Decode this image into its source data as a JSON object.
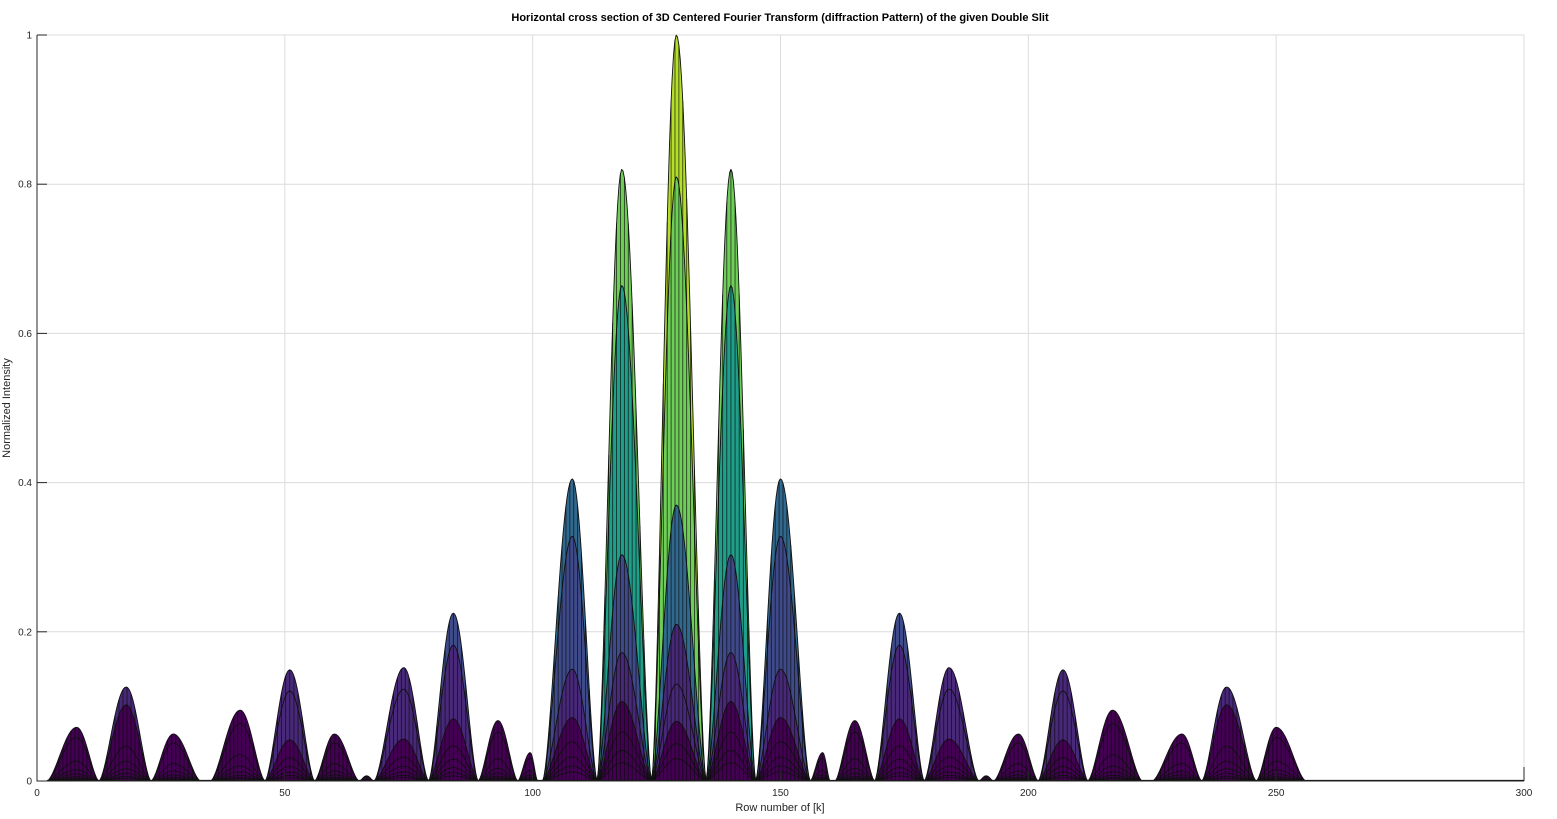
{
  "chart_data": {
    "type": "area",
    "title": "Horizontal cross section of 3D Centered Fourier Transform (diffraction Pattern) of the given Double Slit",
    "xlabel": "Row number of [k]",
    "ylabel": "Normalized Intensity",
    "xlim": [
      0,
      300
    ],
    "ylim": [
      0,
      1
    ],
    "xticks": [
      0,
      50,
      100,
      150,
      200,
      250,
      300
    ],
    "yticks": [
      0,
      0.2,
      0.4,
      0.6,
      0.8,
      1
    ],
    "xtick_labels": [
      "0",
      "50",
      "100",
      "150",
      "200",
      "250",
      "300"
    ],
    "ytick_labels": [
      "0",
      "0.2",
      "0.4",
      "0.6",
      "0.8",
      "1"
    ],
    "grid": true,
    "colormap": [
      "#440154",
      "#482878",
      "#3e4a89",
      "#31688e",
      "#26828e",
      "#1f9e89",
      "#35b779",
      "#6ece58",
      "#b5de2b"
    ],
    "lobes": [
      {
        "start": 2,
        "end": 12.5,
        "peak_x": 8,
        "peak": 0.072
      },
      {
        "start": 12.5,
        "end": 23,
        "peak_x": 18,
        "peak": 0.126
      },
      {
        "start": 23,
        "end": 33,
        "peak_x": 27.5,
        "peak": 0.063
      },
      {
        "start": 35,
        "end": 46,
        "peak_x": 41,
        "peak": 0.095
      },
      {
        "start": 46,
        "end": 56,
        "peak_x": 51,
        "peak": 0.149
      },
      {
        "start": 56,
        "end": 65,
        "peak_x": 60,
        "peak": 0.063
      },
      {
        "start": 65,
        "end": 68,
        "peak_x": 66.5,
        "peak": 0.007
      },
      {
        "start": 68,
        "end": 79,
        "peak_x": 74,
        "peak": 0.152
      },
      {
        "start": 79,
        "end": 89,
        "peak_x": 84,
        "peak": 0.225
      },
      {
        "start": 89,
        "end": 97,
        "peak_x": 93,
        "peak": 0.081
      },
      {
        "start": 97,
        "end": 101,
        "peak_x": 99.5,
        "peak": 0.038
      },
      {
        "start": 102,
        "end": 113,
        "peak_x": 108,
        "peak": 0.405
      },
      {
        "start": 113,
        "end": 124,
        "peak_x": 118,
        "peak": 0.82
      },
      {
        "start": 124,
        "end": 135,
        "peak_x": 129,
        "peak": 1.0
      },
      {
        "start": 135,
        "end": 145,
        "peak_x": 140,
        "peak": 0.82
      },
      {
        "start": 145,
        "end": 156,
        "peak_x": 150,
        "peak": 0.405
      },
      {
        "start": 156,
        "end": 160,
        "peak_x": 158.5,
        "peak": 0.038
      },
      {
        "start": 161,
        "end": 169,
        "peak_x": 165,
        "peak": 0.081
      },
      {
        "start": 169,
        "end": 179,
        "peak_x": 174,
        "peak": 0.225
      },
      {
        "start": 179,
        "end": 190,
        "peak_x": 184,
        "peak": 0.152
      },
      {
        "start": 190,
        "end": 193,
        "peak_x": 191.5,
        "peak": 0.007
      },
      {
        "start": 193,
        "end": 202,
        "peak_x": 198,
        "peak": 0.063
      },
      {
        "start": 202,
        "end": 212,
        "peak_x": 207,
        "peak": 0.149
      },
      {
        "start": 212,
        "end": 223,
        "peak_x": 217,
        "peak": 0.095
      },
      {
        "start": 225,
        "end": 235,
        "peak_x": 231,
        "peak": 0.063
      },
      {
        "start": 235,
        "end": 246,
        "peak_x": 240,
        "peak": 0.126
      },
      {
        "start": 246,
        "end": 256,
        "peak_x": 250,
        "peak": 0.072
      }
    ],
    "layer_scales": [
      1.0,
      0.81,
      0.37,
      0.21,
      0.13,
      0.08,
      0.05,
      0.03
    ],
    "baseline": {
      "start": 256,
      "end": 300,
      "value": 0
    }
  }
}
